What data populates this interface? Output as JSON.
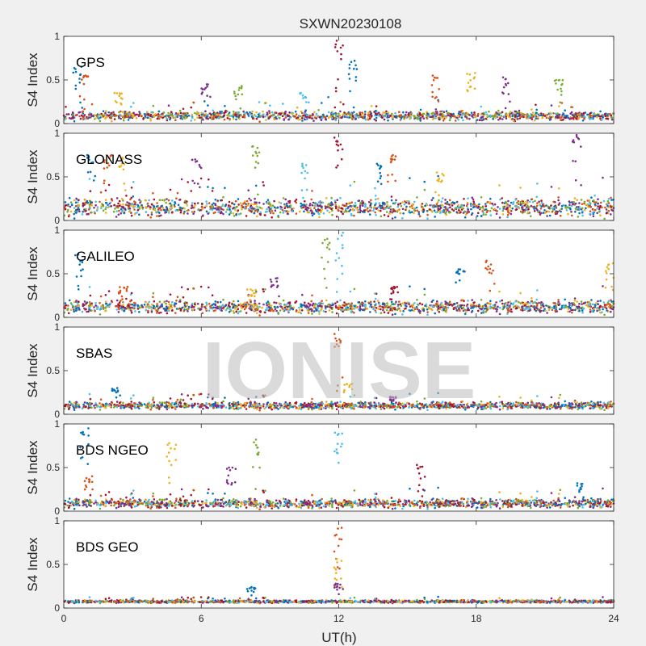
{
  "chart_data": {
    "type": "scatter",
    "title": "SXWN20230108",
    "watermark": "IONISE",
    "xlabel": "UT(h)",
    "xlim": [
      0,
      24
    ],
    "xticks": [
      0,
      6,
      12,
      18,
      24
    ],
    "colors": [
      "#0072BD",
      "#D95319",
      "#EDB120",
      "#7E2F8E",
      "#77AC30",
      "#4DBEEE",
      "#A2142F"
    ],
    "panels": [
      {
        "label": "GPS",
        "ylabel": "S4 Index",
        "ylim": [
          0,
          1
        ],
        "yticks": [
          0,
          0.5,
          1
        ],
        "baseline": 0.09,
        "noise": 0.05,
        "spikes": [
          {
            "x": 0.6,
            "y": 0.65
          },
          {
            "x": 0.9,
            "y": 0.55
          },
          {
            "x": 2.4,
            "y": 0.35
          },
          {
            "x": 6.2,
            "y": 0.45
          },
          {
            "x": 7.6,
            "y": 0.43
          },
          {
            "x": 10.5,
            "y": 0.35
          },
          {
            "x": 12.0,
            "y": 0.95
          },
          {
            "x": 12.6,
            "y": 0.72
          },
          {
            "x": 16.2,
            "y": 0.55
          },
          {
            "x": 17.8,
            "y": 0.58
          },
          {
            "x": 19.3,
            "y": 0.53
          },
          {
            "x": 21.6,
            "y": 0.5
          }
        ]
      },
      {
        "label": "GLONASS",
        "ylabel": "S4 Index",
        "ylim": [
          0,
          1
        ],
        "yticks": [
          0,
          0.5,
          1
        ],
        "baseline": 0.15,
        "noise": 0.1,
        "spikes": [
          {
            "x": 1.2,
            "y": 0.75
          },
          {
            "x": 1.9,
            "y": 0.75
          },
          {
            "x": 2.6,
            "y": 0.72
          },
          {
            "x": 5.8,
            "y": 0.7
          },
          {
            "x": 8.4,
            "y": 0.85
          },
          {
            "x": 10.5,
            "y": 0.65
          },
          {
            "x": 12.0,
            "y": 0.95
          },
          {
            "x": 13.7,
            "y": 0.65
          },
          {
            "x": 14.3,
            "y": 0.75
          },
          {
            "x": 16.4,
            "y": 0.55
          },
          {
            "x": 22.4,
            "y": 0.98
          }
        ]
      },
      {
        "label": "GALILEO",
        "ylabel": "S4 Index",
        "ylim": [
          0,
          1
        ],
        "yticks": [
          0,
          0.5,
          1
        ],
        "baseline": 0.12,
        "noise": 0.07,
        "spikes": [
          {
            "x": 0.7,
            "y": 0.72
          },
          {
            "x": 2.6,
            "y": 0.35
          },
          {
            "x": 8.2,
            "y": 0.32
          },
          {
            "x": 9.2,
            "y": 0.45
          },
          {
            "x": 11.4,
            "y": 0.9
          },
          {
            "x": 12.0,
            "y": 0.97
          },
          {
            "x": 14.4,
            "y": 0.35
          },
          {
            "x": 17.3,
            "y": 0.55
          },
          {
            "x": 18.6,
            "y": 0.65
          },
          {
            "x": 23.8,
            "y": 0.62
          }
        ]
      },
      {
        "label": "SBAS",
        "ylabel": "S4 Index",
        "ylim": [
          0,
          1
        ],
        "yticks": [
          0,
          0.5,
          1
        ],
        "baseline": 0.1,
        "noise": 0.04,
        "spikes": [
          {
            "x": 2.3,
            "y": 0.3
          },
          {
            "x": 12.0,
            "y": 0.92
          },
          {
            "x": 12.4,
            "y": 0.35
          },
          {
            "x": 14.4,
            "y": 0.2
          }
        ]
      },
      {
        "label": "BDS NGEO",
        "ylabel": "S4 Index",
        "ylim": [
          0,
          1
        ],
        "yticks": [
          0,
          0.5,
          1
        ],
        "baseline": 0.09,
        "noise": 0.05,
        "spikes": [
          {
            "x": 0.9,
            "y": 0.95
          },
          {
            "x": 1.1,
            "y": 0.4
          },
          {
            "x": 4.7,
            "y": 0.78
          },
          {
            "x": 7.3,
            "y": 0.5
          },
          {
            "x": 8.4,
            "y": 0.82
          },
          {
            "x": 12.0,
            "y": 0.9
          },
          {
            "x": 15.6,
            "y": 0.53
          },
          {
            "x": 22.5,
            "y": 0.32
          }
        ]
      },
      {
        "label": "BDS GEO",
        "ylabel": "S4 Index",
        "ylim": [
          0,
          1
        ],
        "yticks": [
          0,
          0.5,
          1
        ],
        "baseline": 0.075,
        "noise": 0.015,
        "spikes": [
          {
            "x": 8.2,
            "y": 0.24
          },
          {
            "x": 12.0,
            "y": 0.92
          },
          {
            "x": 12.0,
            "y": 0.56
          },
          {
            "x": 12.0,
            "y": 0.28
          }
        ]
      }
    ]
  }
}
